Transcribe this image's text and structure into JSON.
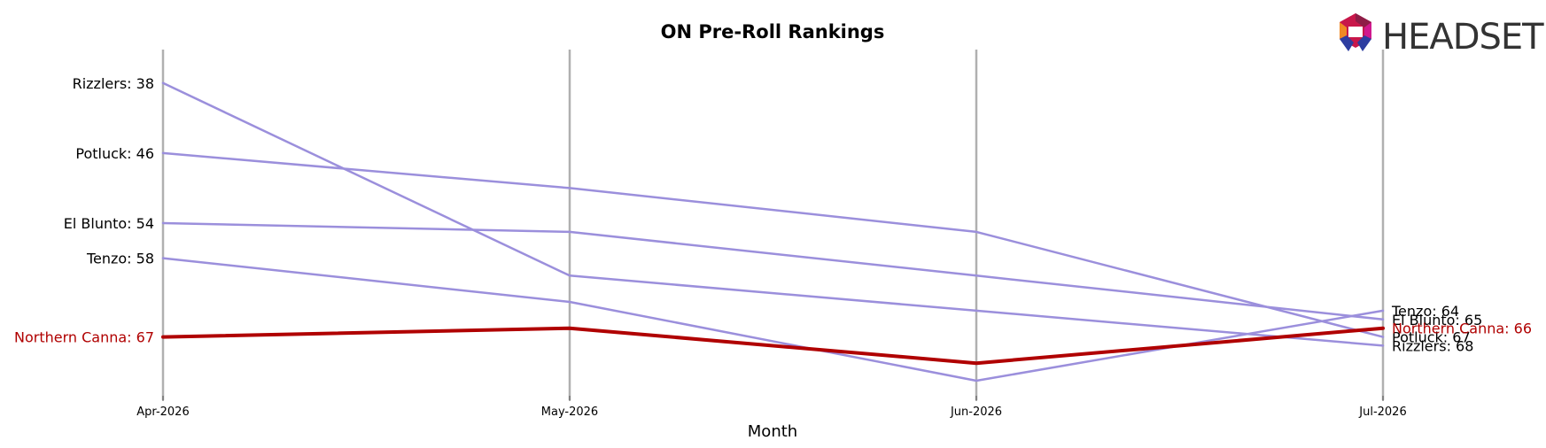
{
  "logo": {
    "text": "HEADSET"
  },
  "chart_data": {
    "type": "line",
    "title": "ON Pre-Roll Rankings",
    "xlabel": "Month",
    "ylabel": "",
    "categories": [
      "Apr-2026",
      "May-2026",
      "Jun-2026",
      "Jul-2026"
    ],
    "y_inverted": true,
    "ylim": [
      36,
      72
    ],
    "grid": "vertical lines at each month",
    "highlight_series": "Northern Canna",
    "highlight_color": "#b00000",
    "other_color": "#9b8fdc",
    "series": [
      {
        "name": "Rizzlers",
        "values": [
          38,
          60,
          64,
          68
        ],
        "start_label": "Rizzlers: 38",
        "end_label": "Rizzlers: 68"
      },
      {
        "name": "Potluck",
        "values": [
          46,
          50,
          55,
          67
        ],
        "start_label": "Potluck: 46",
        "end_label": "Potluck: 67"
      },
      {
        "name": "El Blunto",
        "values": [
          54,
          55,
          60,
          65
        ],
        "start_label": "El Blunto: 54",
        "end_label": "El Blunto: 65"
      },
      {
        "name": "Tenzo",
        "values": [
          58,
          63,
          72,
          64
        ],
        "start_label": "Tenzo: 58",
        "end_label": "Tenzo: 64"
      },
      {
        "name": "Northern Canna",
        "values": [
          67,
          66,
          70,
          66
        ],
        "start_label": "Northern Canna: 67",
        "end_label": "Northern Canna: 66"
      }
    ]
  }
}
